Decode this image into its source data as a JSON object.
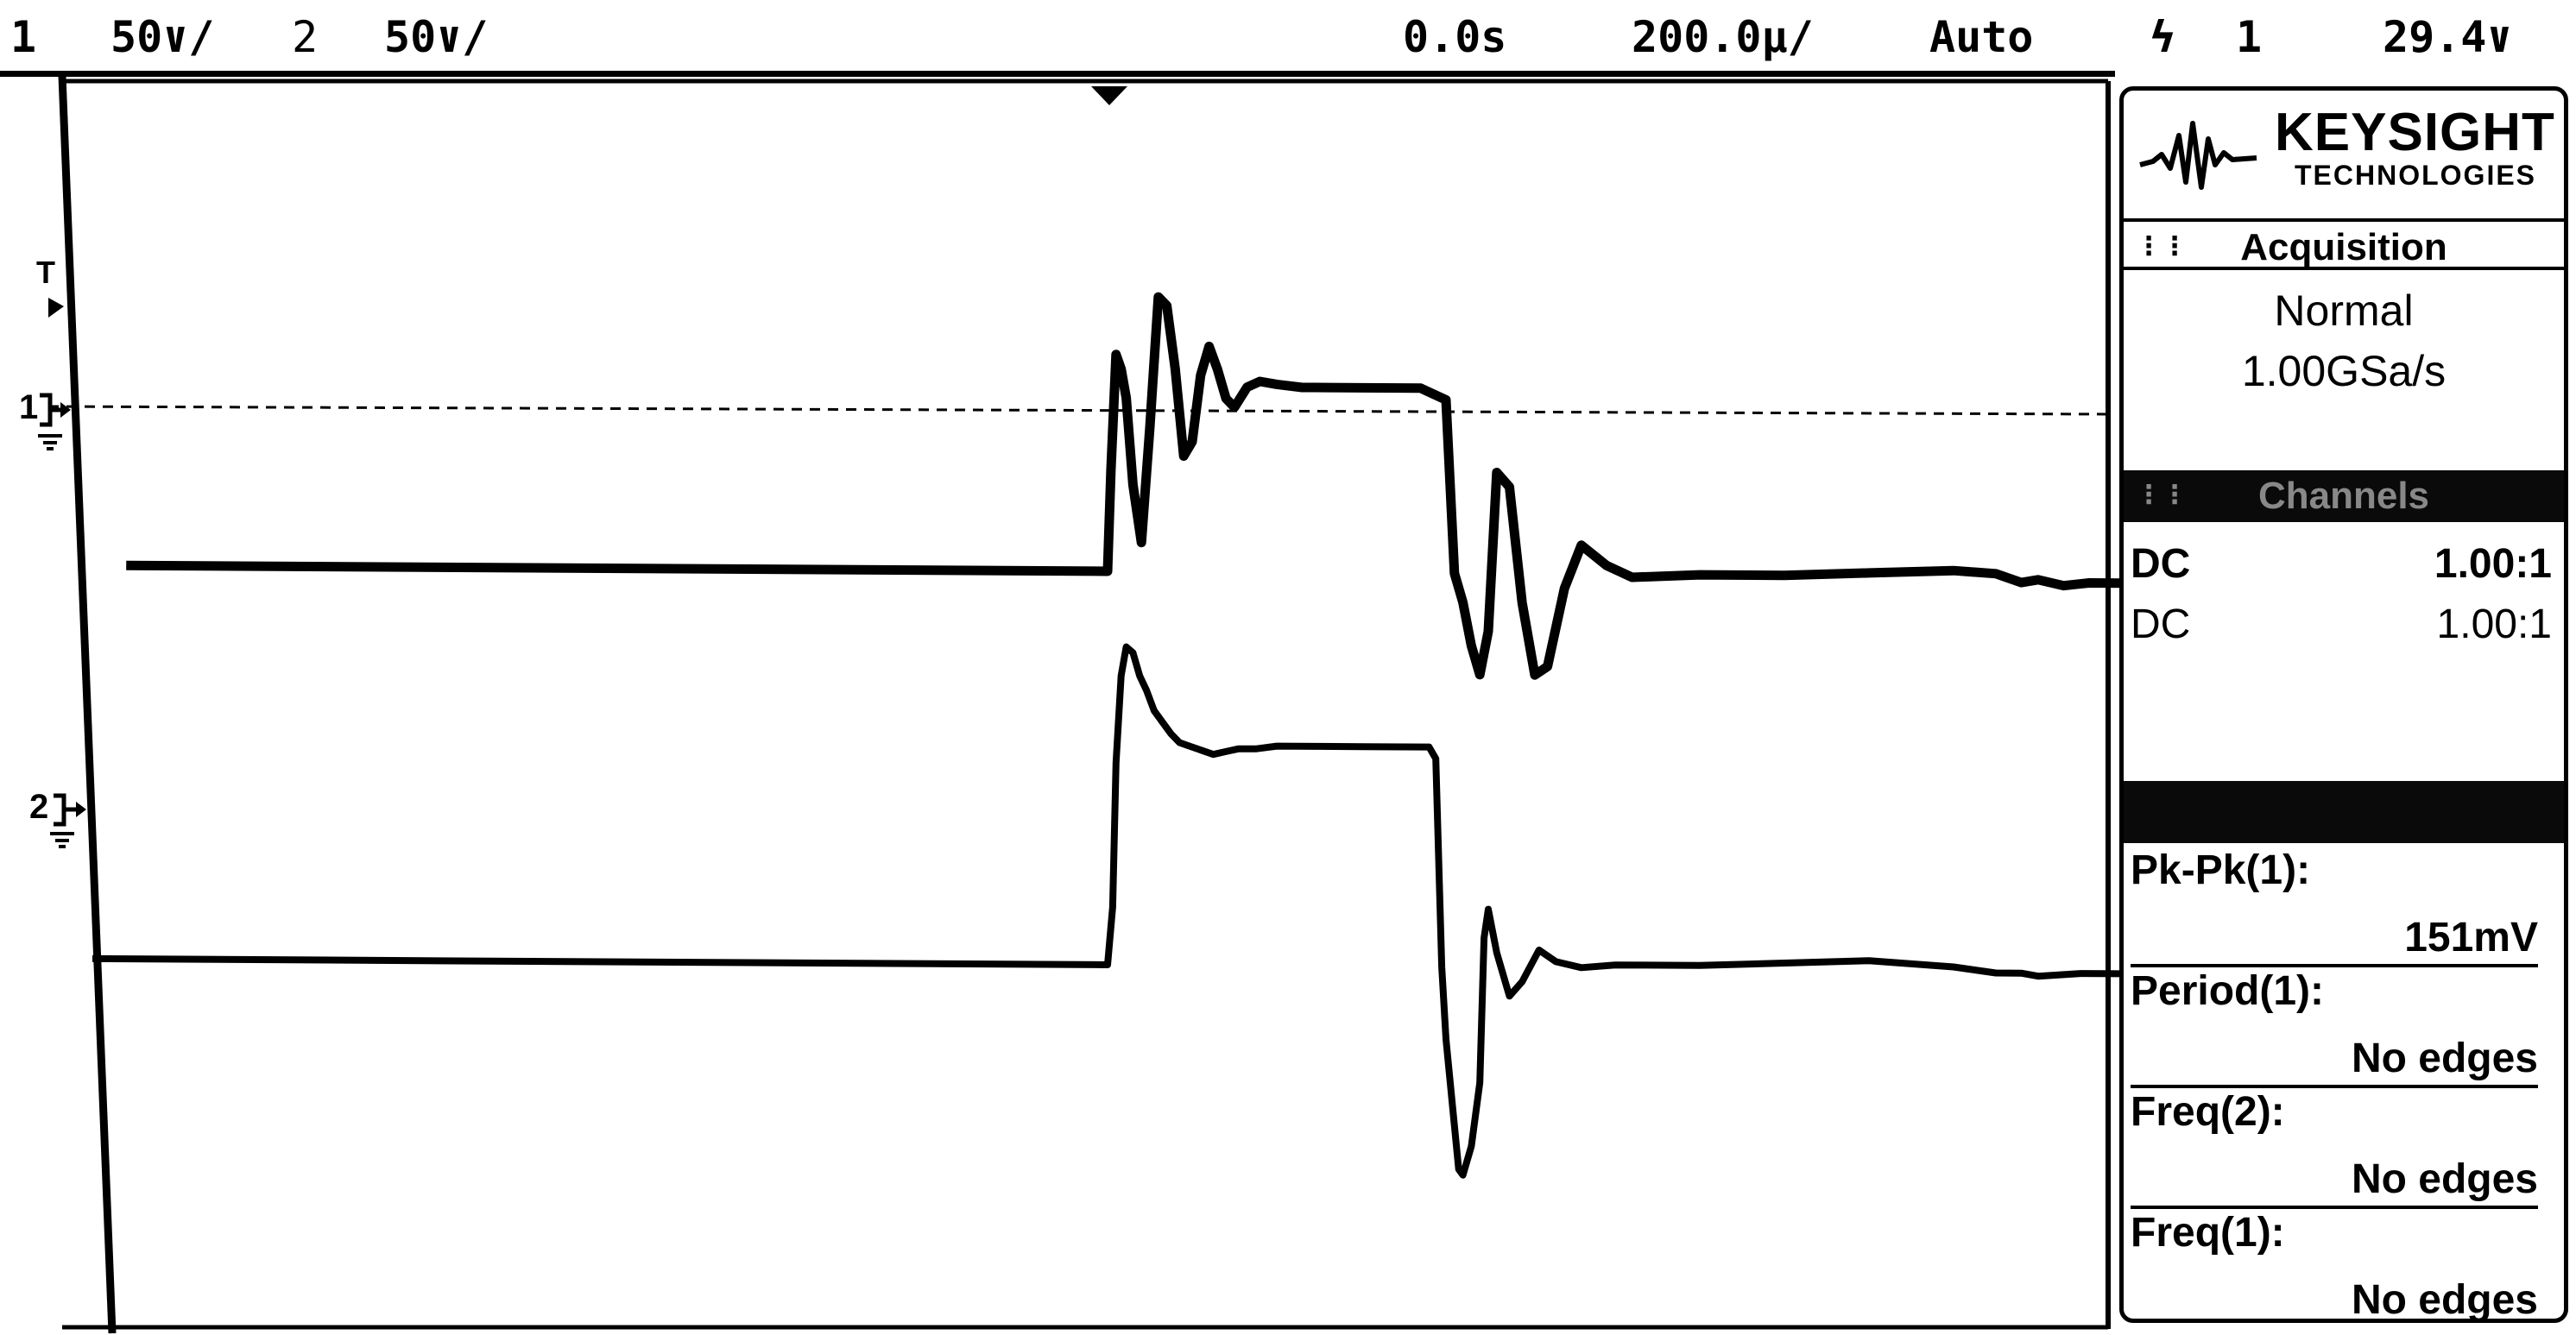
{
  "status_bar": {
    "ch1_num": "1",
    "ch1_scale": "50∨/",
    "ch2_num": "2",
    "ch2_scale": "50∨/",
    "time_offset": "0.0s",
    "time_scale": "200.0µ/",
    "trigger_mode": "Auto",
    "trigger_slope": "ϟ",
    "trigger_source": "1",
    "trigger_level": "29.4∨"
  },
  "screen_markers": {
    "trigger_level_marker": "T",
    "ch1_ground_marker": "1",
    "ch2_ground_marker": "2"
  },
  "panel": {
    "brand": "KEYSIGHT",
    "brand_sub": "TECHNOLOGIES",
    "acquisition": {
      "title": "Acquisition",
      "mode": "Normal",
      "sample_rate": "1.00GSa/s"
    },
    "channels": {
      "title": "Channels",
      "rows": [
        {
          "coupling": "DC",
          "probe": "1.00:1"
        },
        {
          "coupling": "DC",
          "probe": "1.00:1"
        }
      ]
    },
    "measurements": [
      {
        "label": "Pk-Pk(1):",
        "value": "151mV"
      },
      {
        "label": "Period(1):",
        "value": "No edges"
      },
      {
        "label": "Freq(2):",
        "value": "No edges"
      },
      {
        "label": "Freq(1):",
        "value": "No edges"
      }
    ]
  },
  "colors": {
    "trace": "#000000",
    "background": "#ffffff",
    "panel_header_dark": "#0a0a0a"
  },
  "chart_data": {
    "type": "line",
    "xunit": "µs",
    "yunit": "mV",
    "xlim": [
      -1160,
      1240
    ],
    "ylim": [
      -200,
      200
    ],
    "grid": false,
    "series": [
      {
        "x": [
          -1160,
          0,
          4,
          10,
          16,
          22,
          30,
          40,
          50,
          60,
          70,
          80,
          90,
          100,
          110,
          120,
          130,
          140,
          150,
          165,
          180,
          200,
          230,
          260,
          300,
          370,
          400,
          405,
          410,
          420,
          430,
          440,
          450,
          460,
          475,
          490,
          505,
          520,
          540,
          560,
          590,
          620,
          700,
          800,
          900,
          1000,
          1050,
          1080,
          1100,
          1130,
          1160,
          1200,
          1240
        ],
        "y": [
          0,
          0,
          35,
          75,
          70,
          60,
          30,
          10,
          50,
          95,
          92,
          70,
          40,
          45,
          68,
          78,
          70,
          60,
          57,
          64,
          66,
          65,
          64,
          64,
          64,
          64,
          60,
          30,
          0,
          -10,
          -25,
          -35,
          -20,
          35,
          30,
          -10,
          -35,
          -32,
          -5,
          10,
          3,
          -1,
          0,
          0,
          1,
          2,
          1,
          -2,
          -1,
          -3,
          -2,
          -2,
          -2
        ]
      },
      {
        "x": [
          -1200,
          0,
          6,
          10,
          16,
          22,
          30,
          38,
          46,
          55,
          65,
          75,
          85,
          95,
          105,
          115,
          125,
          140,
          155,
          175,
          200,
          250,
          300,
          350,
          380,
          388,
          395,
          400,
          405,
          410,
          415,
          420,
          430,
          440,
          445,
          450,
          460,
          475,
          490,
          510,
          530,
          560,
          600,
          700,
          800,
          900,
          1000,
          1050,
          1080,
          1100,
          1150,
          1200,
          1240
        ],
        "y": [
          0,
          0,
          20,
          70,
          100,
          110,
          108,
          100,
          95,
          88,
          84,
          80,
          77,
          76,
          75,
          74,
          73,
          74,
          75,
          75,
          76,
          76,
          76,
          76,
          76,
          72,
          0,
          -25,
          -40,
          -55,
          -70,
          -72,
          -62,
          -40,
          10,
          20,
          5,
          -10,
          -5,
          6,
          2,
          0,
          1,
          1,
          2,
          3,
          1,
          -1,
          -1,
          -2,
          -1,
          -1,
          -1
        ]
      }
    ]
  }
}
